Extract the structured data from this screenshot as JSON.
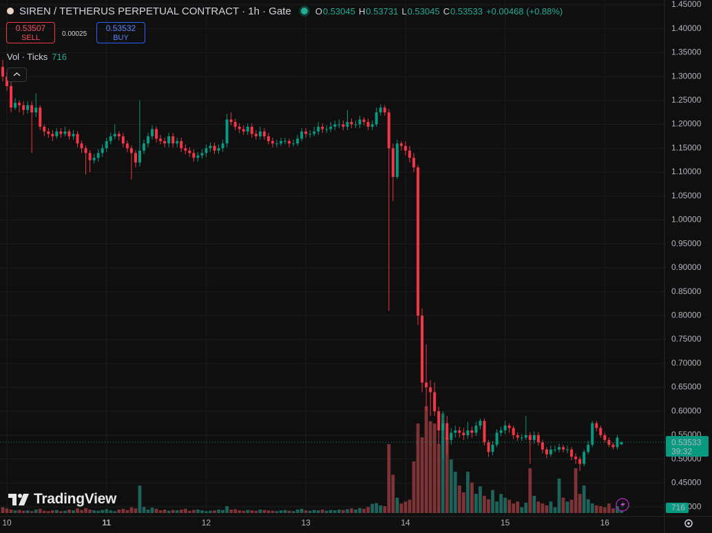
{
  "header": {
    "title": "SIREN / TETHERUS PERPETUAL CONTRACT · 1h · Gate",
    "ohlc_labels": [
      "O",
      "H",
      "L",
      "C"
    ],
    "change_label": "+0.00468 (+0.88%)"
  },
  "order": {
    "sell_price": 0.53507,
    "sell_label": "SELL",
    "spread": 0.00025,
    "buy_price": 0.53532,
    "buy_label": "BUY"
  },
  "volume_label": "Vol · Ticks",
  "countdown": "39:32",
  "brand": "TradingView",
  "chart_data": {
    "type": "candlestick",
    "grid": true,
    "up_color": "#089981",
    "down_color": "#f23645",
    "volume_up_color": "#1d635b",
    "volume_down_color": "#7e3336",
    "ylim": [
      0.38,
      1.46
    ],
    "yticks": [
      {
        "value": 0.4,
        "label": "0.40000"
      },
      {
        "value": 0.45,
        "label": "0.45000"
      },
      {
        "value": 0.5,
        "label": "0.50000"
      },
      {
        "value": 0.55,
        "label": "0.55000"
      },
      {
        "value": 0.6,
        "label": "0.60000"
      },
      {
        "value": 0.65,
        "label": "0.65000"
      },
      {
        "value": 0.7,
        "label": "0.70000"
      },
      {
        "value": 0.75,
        "label": "0.75000"
      },
      {
        "value": 0.8,
        "label": "0.80000"
      },
      {
        "value": 0.85,
        "label": "0.85000"
      },
      {
        "value": 0.9,
        "label": "0.90000"
      },
      {
        "value": 0.95,
        "label": "0.95000"
      },
      {
        "value": 1.0,
        "label": "1.00000"
      },
      {
        "value": 1.05,
        "label": "1.05000"
      },
      {
        "value": 1.1,
        "label": "1.10000"
      },
      {
        "value": 1.15,
        "label": "1.15000"
      },
      {
        "value": 1.2,
        "label": "1.20000"
      },
      {
        "value": 1.25,
        "label": "1.25000"
      },
      {
        "value": 1.3,
        "label": "1.30000"
      },
      {
        "value": 1.35,
        "label": "1.35000"
      },
      {
        "value": 1.4,
        "label": "1.40000"
      },
      {
        "value": 1.45,
        "label": "1.45000"
      }
    ],
    "categories": [
      null,
      "10",
      null,
      null,
      null,
      null,
      null,
      null,
      null,
      null,
      null,
      null,
      null,
      null,
      null,
      null,
      null,
      null,
      null,
      null,
      null,
      null,
      null,
      null,
      null,
      "11",
      null,
      null,
      null,
      null,
      null,
      null,
      null,
      null,
      null,
      null,
      null,
      null,
      null,
      null,
      null,
      null,
      null,
      null,
      null,
      null,
      null,
      null,
      null,
      "12",
      null,
      null,
      null,
      null,
      null,
      null,
      null,
      null,
      null,
      null,
      null,
      null,
      null,
      null,
      null,
      null,
      null,
      null,
      null,
      null,
      null,
      null,
      null,
      "13",
      null,
      null,
      null,
      null,
      null,
      null,
      null,
      null,
      null,
      null,
      null,
      null,
      null,
      null,
      null,
      null,
      null,
      null,
      null,
      null,
      null,
      null,
      null,
      "14",
      null,
      null,
      null,
      null,
      null,
      null,
      null,
      null,
      null,
      null,
      null,
      null,
      null,
      null,
      null,
      null,
      null,
      null,
      null,
      null,
      null,
      null,
      null,
      "15",
      null,
      null,
      null,
      null,
      null,
      null,
      null,
      null,
      null,
      null,
      null,
      null,
      null,
      null,
      null,
      null,
      null,
      null,
      null,
      null,
      null,
      null,
      null,
      "16",
      null,
      null,
      null,
      null
    ],
    "open": [
      1.32,
      1.3,
      1.28,
      1.235,
      1.245,
      1.24,
      1.23,
      1.24,
      1.225,
      1.235,
      1.195,
      1.185,
      1.18,
      1.175,
      1.185,
      1.18,
      1.185,
      1.175,
      1.18,
      1.16,
      1.15,
      1.14,
      1.125,
      1.13,
      1.14,
      1.15,
      1.165,
      1.175,
      1.18,
      1.175,
      1.16,
      1.15,
      1.14,
      1.12,
      1.145,
      1.16,
      1.175,
      1.19,
      1.17,
      1.165,
      1.16,
      1.175,
      1.16,
      1.165,
      1.15,
      1.145,
      1.14,
      1.13,
      1.135,
      1.14,
      1.15,
      1.155,
      1.145,
      1.15,
      1.16,
      1.21,
      1.205,
      1.195,
      1.19,
      1.185,
      1.195,
      1.18,
      1.175,
      1.185,
      1.175,
      1.165,
      1.16,
      1.16,
      1.165,
      1.165,
      1.16,
      1.16,
      1.17,
      1.185,
      1.18,
      1.18,
      1.185,
      1.195,
      1.19,
      1.19,
      1.195,
      1.2,
      1.2,
      1.195,
      1.205,
      1.2,
      1.2,
      1.21,
      1.205,
      1.195,
      1.2,
      1.225,
      1.235,
      1.225,
      1.15,
      1.09,
      1.16,
      1.155,
      1.145,
      1.13,
      1.11,
      0.8,
      0.66,
      0.65,
      0.64,
      0.6,
      0.56,
      0.575,
      0.54,
      0.555,
      0.56,
      0.555,
      0.55,
      0.56,
      0.555,
      0.57,
      0.58,
      0.535,
      0.515,
      0.53,
      0.555,
      0.56,
      0.57,
      0.565,
      0.55,
      0.545,
      0.545,
      0.55,
      0.54,
      0.55,
      0.535,
      0.52,
      0.51,
      0.52,
      0.52,
      0.525,
      0.52,
      0.52,
      0.505,
      0.5,
      0.49,
      0.515,
      0.53,
      0.575,
      0.565,
      0.55,
      0.54,
      0.53,
      0.525,
      0.53045
    ],
    "high": [
      1.335,
      1.31,
      1.29,
      1.255,
      1.25,
      1.248,
      1.248,
      1.248,
      1.265,
      1.24,
      1.2,
      1.192,
      1.188,
      1.192,
      1.192,
      1.195,
      1.19,
      1.188,
      1.186,
      1.166,
      1.156,
      1.146,
      1.138,
      1.148,
      1.158,
      1.172,
      1.182,
      1.2,
      1.186,
      1.182,
      1.166,
      1.156,
      1.146,
      1.25,
      1.168,
      1.182,
      1.198,
      1.196,
      1.178,
      1.172,
      1.182,
      1.182,
      1.172,
      1.172,
      1.158,
      1.152,
      1.148,
      1.142,
      1.148,
      1.158,
      1.162,
      1.162,
      1.158,
      1.168,
      1.222,
      1.225,
      1.212,
      1.202,
      1.198,
      1.202,
      1.202,
      1.188,
      1.195,
      1.192,
      1.182,
      1.172,
      1.168,
      1.172,
      1.172,
      1.17,
      1.168,
      1.178,
      1.192,
      1.192,
      1.188,
      1.195,
      1.205,
      1.202,
      1.198,
      1.205,
      1.208,
      1.21,
      1.208,
      1.23,
      1.212,
      1.208,
      1.218,
      1.215,
      1.212,
      1.208,
      1.235,
      1.242,
      1.24,
      1.232,
      1.16,
      1.168,
      1.165,
      1.165,
      1.155,
      1.14,
      1.115,
      0.815,
      0.74,
      0.665,
      0.66,
      0.61,
      0.6,
      0.59,
      0.565,
      0.57,
      0.568,
      0.565,
      0.578,
      0.568,
      0.578,
      0.585,
      0.585,
      0.54,
      0.538,
      0.562,
      0.568,
      0.58,
      0.575,
      0.57,
      0.556,
      0.552,
      0.59,
      0.556,
      0.558,
      0.556,
      0.54,
      0.525,
      0.528,
      0.528,
      0.532,
      0.53,
      0.528,
      0.525,
      0.512,
      0.505,
      0.52,
      0.538,
      0.58,
      0.58,
      0.57,
      0.555,
      0.545,
      0.535,
      0.55,
      0.53731
    ],
    "low": [
      1.29,
      1.27,
      1.225,
      1.23,
      1.225,
      1.22,
      1.222,
      1.14,
      1.215,
      1.188,
      1.175,
      1.172,
      1.165,
      1.17,
      1.172,
      1.175,
      1.168,
      1.168,
      1.152,
      1.14,
      1.095,
      1.1,
      1.118,
      1.122,
      1.132,
      1.142,
      1.158,
      1.168,
      1.166,
      1.152,
      1.142,
      1.085,
      1.11,
      1.112,
      1.138,
      1.152,
      1.168,
      1.162,
      1.158,
      1.152,
      1.152,
      1.152,
      1.152,
      1.142,
      1.137,
      1.132,
      1.122,
      1.122,
      1.128,
      1.132,
      1.142,
      1.138,
      1.138,
      1.142,
      1.152,
      1.198,
      1.188,
      1.182,
      1.178,
      1.178,
      1.172,
      1.168,
      1.168,
      1.168,
      1.158,
      1.152,
      1.152,
      1.155,
      1.158,
      1.152,
      1.154,
      1.155,
      1.165,
      1.172,
      1.172,
      1.175,
      1.178,
      1.182,
      1.182,
      1.184,
      1.188,
      1.192,
      1.188,
      1.188,
      1.192,
      1.192,
      1.192,
      1.198,
      1.188,
      1.188,
      1.195,
      1.218,
      1.218,
      0.81,
      1.04,
      1.085,
      1.145,
      1.135,
      1.12,
      1.1,
      0.78,
      0.64,
      0.6,
      0.59,
      0.59,
      0.53,
      0.5,
      0.51,
      0.53,
      0.545,
      0.545,
      0.54,
      0.542,
      0.545,
      0.548,
      0.562,
      0.528,
      0.505,
      0.508,
      0.525,
      0.548,
      0.552,
      0.555,
      0.542,
      0.538,
      0.538,
      0.54,
      0.49,
      0.532,
      0.528,
      0.512,
      0.502,
      0.505,
      0.514,
      0.514,
      0.514,
      0.512,
      0.498,
      0.49,
      0.475,
      0.485,
      0.51,
      0.525,
      0.558,
      0.545,
      0.535,
      0.525,
      0.52,
      0.52,
      0.53045
    ],
    "close": [
      1.3,
      1.28,
      1.235,
      1.245,
      1.24,
      1.23,
      1.24,
      1.225,
      1.235,
      1.195,
      1.185,
      1.18,
      1.175,
      1.185,
      1.18,
      1.185,
      1.175,
      1.18,
      1.16,
      1.15,
      1.14,
      1.125,
      1.13,
      1.14,
      1.15,
      1.165,
      1.175,
      1.18,
      1.175,
      1.16,
      1.15,
      1.14,
      1.12,
      1.145,
      1.16,
      1.175,
      1.19,
      1.17,
      1.165,
      1.16,
      1.175,
      1.16,
      1.165,
      1.15,
      1.145,
      1.14,
      1.13,
      1.135,
      1.14,
      1.15,
      1.155,
      1.145,
      1.15,
      1.16,
      1.21,
      1.205,
      1.195,
      1.19,
      1.185,
      1.195,
      1.18,
      1.175,
      1.185,
      1.175,
      1.165,
      1.16,
      1.16,
      1.165,
      1.165,
      1.16,
      1.16,
      1.17,
      1.185,
      1.18,
      1.18,
      1.185,
      1.195,
      1.19,
      1.19,
      1.195,
      1.2,
      1.2,
      1.195,
      1.205,
      1.2,
      1.2,
      1.21,
      1.205,
      1.195,
      1.2,
      1.225,
      1.235,
      1.225,
      1.15,
      1.09,
      1.16,
      1.155,
      1.145,
      1.13,
      1.11,
      0.8,
      0.66,
      0.65,
      0.64,
      0.6,
      0.56,
      0.575,
      0.54,
      0.555,
      0.56,
      0.555,
      0.55,
      0.56,
      0.555,
      0.57,
      0.58,
      0.535,
      0.515,
      0.53,
      0.555,
      0.56,
      0.57,
      0.565,
      0.55,
      0.545,
      0.545,
      0.55,
      0.54,
      0.55,
      0.535,
      0.52,
      0.51,
      0.52,
      0.52,
      0.525,
      0.52,
      0.52,
      0.505,
      0.5,
      0.49,
      0.515,
      0.53,
      0.575,
      0.565,
      0.55,
      0.54,
      0.53,
      0.525,
      0.545,
      0.53533
    ],
    "volume": [
      1500,
      1200,
      900,
      700,
      800,
      600,
      700,
      500,
      900,
      1100,
      600,
      500,
      700,
      800,
      500,
      600,
      900,
      700,
      1200,
      800,
      1300,
      900,
      700,
      600,
      800,
      1000,
      700,
      500,
      900,
      1100,
      800,
      1500,
      1200,
      7200,
      1600,
      900,
      1400,
      1100,
      700,
      900,
      600,
      800,
      700,
      900,
      1100,
      600,
      800,
      900,
      700,
      500,
      600,
      700,
      900,
      800,
      1800,
      900,
      1000,
      700,
      600,
      800,
      700,
      600,
      900,
      800,
      700,
      600,
      500,
      700,
      800,
      600,
      500,
      900,
      1100,
      700,
      600,
      800,
      700,
      900,
      600,
      800,
      700,
      900,
      800,
      1000,
      1200,
      900,
      1300,
      1100,
      1600,
      2400,
      2600,
      2000,
      1800,
      18000,
      10000,
      4000,
      2500,
      3000,
      3500,
      13500,
      23400,
      19800,
      27900,
      24000,
      23400,
      18000,
      26000,
      19800,
      14000,
      10800,
      7200,
      5400,
      10800,
      8000,
      5000,
      7000,
      4500,
      3600,
      6000,
      3000,
      5000,
      4000,
      3500,
      2500,
      3000,
      1500,
      2700,
      11700,
      4500,
      3000,
      2500,
      2000,
      3000,
      1500,
      9000,
      4000,
      3000,
      3500,
      11700,
      5000,
      7200,
      3600,
      2500,
      2000,
      1800,
      1500,
      2500,
      1200,
      1800,
      716
    ]
  }
}
